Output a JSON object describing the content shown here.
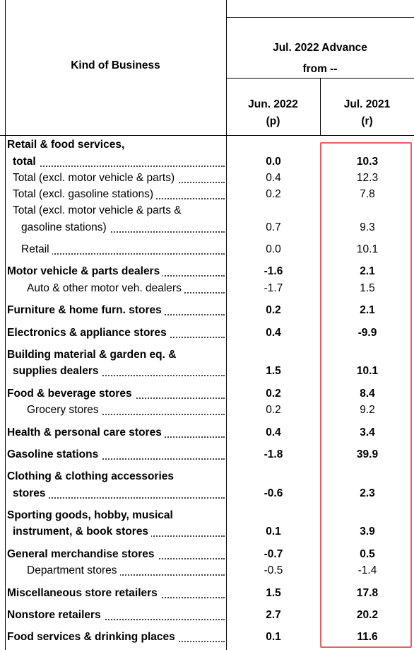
{
  "header": {
    "kind_label": "Kind of Business",
    "group_line1": "Jul. 2022 Advance",
    "group_line2": "from --",
    "col1_line1": "Jun. 2022",
    "col1_line2": "(p)",
    "col2_line1": "Jul. 2021",
    "col2_line2": "(r)"
  },
  "rows": [
    {
      "label": "Retail & food services,",
      "bold": true,
      "indent": 0,
      "v1": "",
      "v2": ""
    },
    {
      "label": "total",
      "bold": true,
      "indent": 1,
      "v1": "0.0",
      "v2": "10.3"
    },
    {
      "label": "Total (excl. motor vehicle & parts)",
      "bold": false,
      "indent": 1,
      "v1": "0.4",
      "v2": "12.3"
    },
    {
      "label": "Total (excl. gasoline stations)",
      "bold": false,
      "indent": 1,
      "v1": "0.2",
      "v2": "7.8"
    },
    {
      "label": "Total (excl. motor vehicle & parts &",
      "bold": false,
      "indent": 1,
      "v1": "",
      "v2": ""
    },
    {
      "label": "gasoline stations)",
      "bold": false,
      "indent": 2,
      "v1": "0.7",
      "v2": "9.3"
    },
    {
      "label": "Retail",
      "bold": false,
      "indent": 3,
      "v1": "0.0",
      "v2": "10.1"
    },
    {
      "label": "Motor vehicle & parts dealers",
      "bold": true,
      "indent": 0,
      "v1": "-1.6",
      "v2": "2.1"
    },
    {
      "label": "Auto & other motor veh. dealers",
      "bold": false,
      "indent": 4,
      "v1": "-1.7",
      "v2": "1.5"
    },
    {
      "label": "Furniture & home furn. stores",
      "bold": true,
      "indent": 0,
      "v1": "0.2",
      "v2": "2.1"
    },
    {
      "label": "Electronics & appliance stores",
      "bold": true,
      "indent": 0,
      "v1": "0.4",
      "v2": "-9.9"
    },
    {
      "label": "Building material & garden eq. &",
      "bold": true,
      "indent": 0,
      "v1": "",
      "v2": ""
    },
    {
      "label": "supplies dealers",
      "bold": true,
      "indent": 1,
      "v1": "1.5",
      "v2": "10.1"
    },
    {
      "label": "Food & beverage stores",
      "bold": true,
      "indent": 0,
      "v1": "0.2",
      "v2": "8.4"
    },
    {
      "label": "Grocery stores",
      "bold": false,
      "indent": 4,
      "v1": "0.2",
      "v2": "9.2"
    },
    {
      "label": "Health & personal care stores",
      "bold": true,
      "indent": 0,
      "v1": "0.4",
      "v2": "3.4"
    },
    {
      "label": "Gasoline stations",
      "bold": true,
      "indent": 0,
      "v1": "-1.8",
      "v2": "39.9"
    },
    {
      "label": "Clothing & clothing accessories",
      "bold": true,
      "indent": 0,
      "v1": "",
      "v2": ""
    },
    {
      "label": "stores",
      "bold": true,
      "indent": 1,
      "v1": "-0.6",
      "v2": "2.3"
    },
    {
      "label": "Sporting goods, hobby, musical",
      "bold": true,
      "indent": 0,
      "v1": "",
      "v2": ""
    },
    {
      "label": "instrument, & book stores",
      "bold": true,
      "indent": 1,
      "v1": "0.1",
      "v2": "3.9"
    },
    {
      "label": "General merchandise stores",
      "bold": true,
      "indent": 0,
      "v1": "-0.7",
      "v2": "0.5"
    },
    {
      "label": "Department stores",
      "bold": false,
      "indent": 4,
      "v1": "-0.5",
      "v2": "-1.4"
    },
    {
      "label": "Miscellaneous store retailers",
      "bold": true,
      "indent": 0,
      "v1": "1.5",
      "v2": "17.8"
    },
    {
      "label": "Nonstore retailers",
      "bold": true,
      "indent": 0,
      "v1": "2.7",
      "v2": "20.2"
    },
    {
      "label": "Food services & drinking places",
      "bold": true,
      "indent": 0,
      "v1": "0.1",
      "v2": "11.6"
    }
  ]
}
